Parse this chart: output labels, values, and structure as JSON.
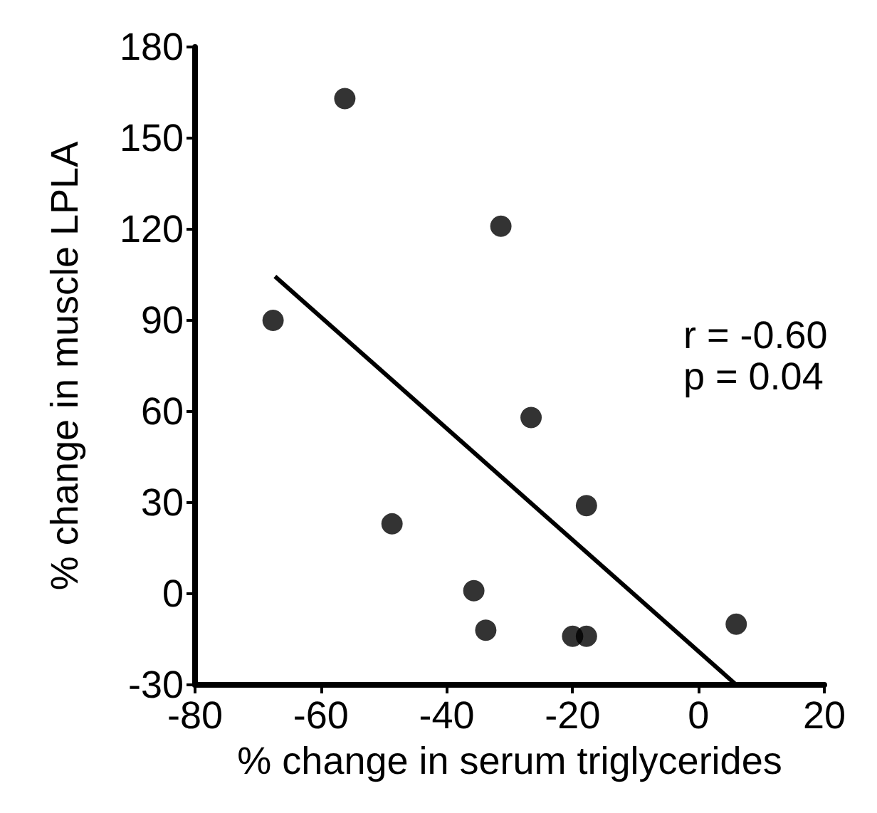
{
  "chart_data": {
    "type": "scatter",
    "xlabel": "% change in serum triglycerides",
    "ylabel": "% change in muscle LPLA",
    "xlim": [
      -80,
      20
    ],
    "xticks": [
      -80,
      -60,
      -40,
      -20,
      0,
      20
    ],
    "ylim": [
      -30,
      180
    ],
    "yticks": [
      -30,
      0,
      30,
      60,
      90,
      120,
      150,
      180
    ],
    "grid": false,
    "marker": "circle",
    "series": [
      {
        "color": "#000000",
        "x": [
          -56.2,
          -31.4,
          -67.6,
          -26.6,
          -17.8,
          -48.7,
          -35.7,
          -33.8,
          -20,
          -17.8,
          6
        ],
        "values": [
          163,
          121,
          90,
          58,
          29,
          23,
          1,
          -12,
          -14,
          -14,
          -10
        ]
      },
      {
        "type": "line",
        "marker": "none",
        "color": "#000000",
        "x": [
          -67.3,
          6
        ],
        "values": [
          104.5,
          -30
        ]
      }
    ],
    "annotations": [
      "r = -0.60",
      "p = 0.04"
    ]
  }
}
